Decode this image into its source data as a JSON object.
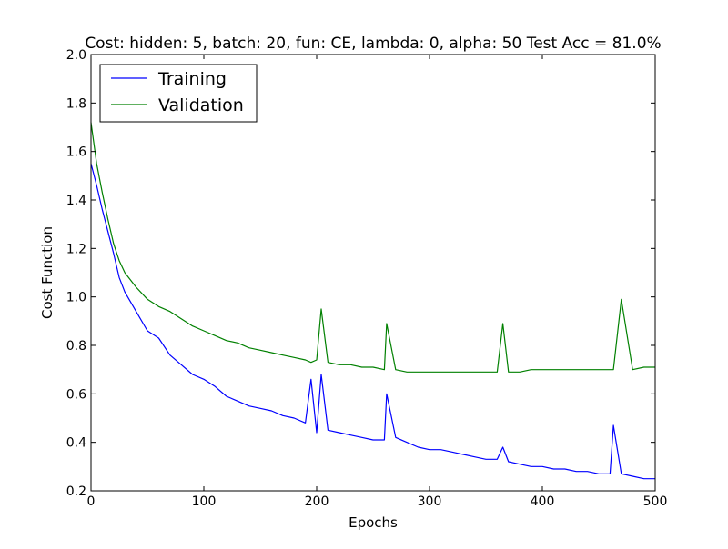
{
  "chart_data": {
    "type": "line",
    "title": "Cost: hidden: 5, batch: 20, fun: CE, lambda: 0, alpha: 50  Test Acc = 81.0%",
    "xlabel": "Epochs",
    "ylabel": "Cost Function",
    "xlim": [
      0,
      500
    ],
    "ylim": [
      0.2,
      2.0
    ],
    "x_ticks": [
      0,
      100,
      200,
      300,
      400,
      500
    ],
    "y_ticks": [
      0.2,
      0.4,
      0.6,
      0.8,
      1.0,
      1.2,
      1.4,
      1.6,
      1.8,
      2.0
    ],
    "grid": false,
    "legend_position": "top-left",
    "x": [
      0,
      5,
      10,
      15,
      20,
      25,
      30,
      40,
      50,
      60,
      70,
      80,
      90,
      100,
      110,
      120,
      130,
      140,
      150,
      160,
      170,
      180,
      190,
      195,
      200,
      204,
      210,
      220,
      230,
      240,
      250,
      260,
      262,
      270,
      280,
      290,
      300,
      310,
      320,
      330,
      340,
      350,
      360,
      365,
      370,
      380,
      390,
      400,
      410,
      420,
      430,
      440,
      450,
      460,
      463,
      470,
      480,
      490,
      500
    ],
    "series": [
      {
        "name": "Training",
        "color": "#0000ff",
        "values": [
          1.55,
          1.46,
          1.36,
          1.27,
          1.18,
          1.08,
          1.02,
          0.94,
          0.86,
          0.83,
          0.76,
          0.72,
          0.68,
          0.66,
          0.63,
          0.59,
          0.57,
          0.55,
          0.54,
          0.53,
          0.51,
          0.5,
          0.48,
          0.66,
          0.44,
          0.68,
          0.45,
          0.44,
          0.43,
          0.42,
          0.41,
          0.41,
          0.6,
          0.42,
          0.4,
          0.38,
          0.37,
          0.37,
          0.36,
          0.35,
          0.34,
          0.33,
          0.33,
          0.38,
          0.32,
          0.31,
          0.3,
          0.3,
          0.29,
          0.29,
          0.28,
          0.28,
          0.27,
          0.27,
          0.47,
          0.27,
          0.26,
          0.25,
          0.25
        ]
      },
      {
        "name": "Validation",
        "color": "#008000",
        "values": [
          1.72,
          1.55,
          1.43,
          1.32,
          1.22,
          1.15,
          1.1,
          1.04,
          0.99,
          0.96,
          0.94,
          0.91,
          0.88,
          0.86,
          0.84,
          0.82,
          0.81,
          0.79,
          0.78,
          0.77,
          0.76,
          0.75,
          0.74,
          0.73,
          0.74,
          0.95,
          0.73,
          0.72,
          0.72,
          0.71,
          0.71,
          0.7,
          0.89,
          0.7,
          0.69,
          0.69,
          0.69,
          0.69,
          0.69,
          0.69,
          0.69,
          0.69,
          0.69,
          0.89,
          0.69,
          0.69,
          0.7,
          0.7,
          0.7,
          0.7,
          0.7,
          0.7,
          0.7,
          0.7,
          0.7,
          0.99,
          0.7,
          0.71,
          0.71
        ]
      }
    ]
  }
}
